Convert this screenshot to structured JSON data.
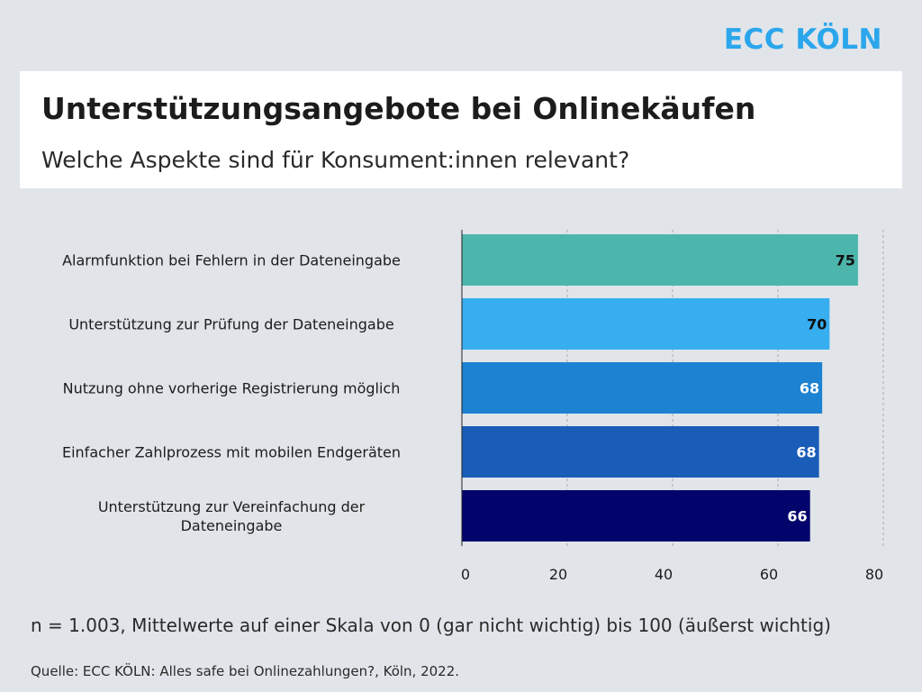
{
  "brand": "ECC KÖLN",
  "note": "n = 1.003, Mittelwerte auf einer Skala von 0 (gar nicht wichtig) bis 100 (äußerst wichtig)",
  "source": "Quelle: ECC KÖLN: Alles safe bei Onlinezahlungen?, Köln, 2022.",
  "chart_data": {
    "type": "bar",
    "orientation": "horizontal",
    "title": "Unterstützungsangebote bei Onlinekäufen",
    "subtitle": "Welche Aspekte sind für Konsument:innen relevant?",
    "categories": [
      [
        "Alarmfunktion bei Fehlern in der Dateneingabe"
      ],
      [
        "Unterstützung zur Prüfung der Dateneingabe"
      ],
      [
        "Nutzung ohne vorherige Registrierung möglich"
      ],
      [
        "Einfacher Zahlprozess mit mobilen Endgeräten"
      ],
      [
        "Unterstützung zur Vereinfachung der",
        "Dateneingabe"
      ]
    ],
    "values": [
      75.2,
      69.8,
      68.4,
      67.8,
      66.1
    ],
    "data_labels": [
      "75",
      "70",
      "68",
      "68",
      "66"
    ],
    "colors": [
      "#4db6ac",
      "#37aef0",
      "#1e82d2",
      "#1a5db8",
      "#03046b"
    ],
    "label_colors": [
      "#111111",
      "#111111",
      "#ffffff",
      "#ffffff",
      "#ffffff"
    ],
    "xlim": [
      0,
      80
    ],
    "xticks": [
      0,
      20,
      40,
      60,
      80
    ],
    "grid": true,
    "legend": "none"
  }
}
